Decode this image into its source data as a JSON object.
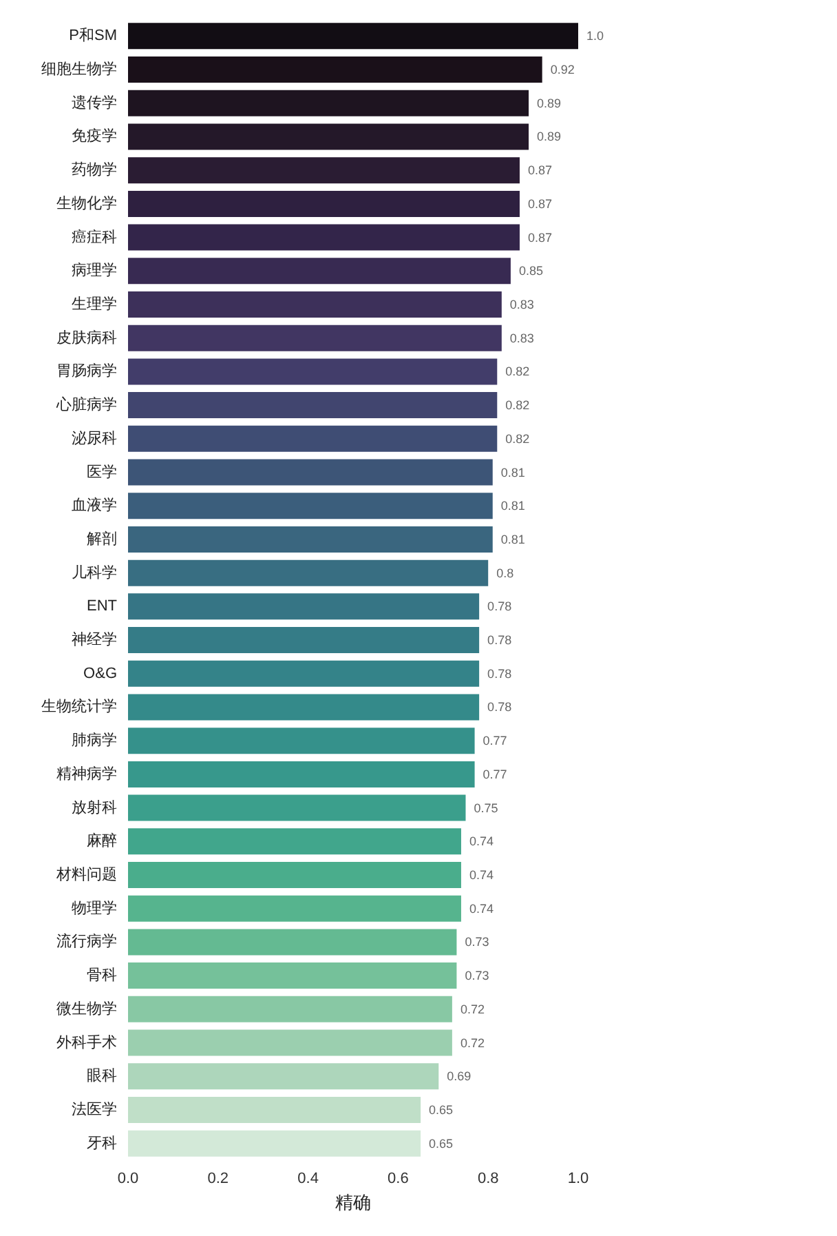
{
  "chart_data": {
    "type": "bar",
    "orientation": "horizontal",
    "xlabel": "精确",
    "categories": [
      "P和SM",
      "细胞生物学",
      "遗传学",
      "免疫学",
      "药物学",
      "生物化学",
      "癌症科",
      "病理学",
      "生理学",
      "皮肤病科",
      "胃肠病学",
      "心脏病学",
      "泌尿科",
      "医学",
      "血液学",
      "解剖",
      "儿科学",
      "ENT",
      "神经学",
      "O&G",
      "生物统计学",
      "肺病学",
      "精神病学",
      "放射科",
      "麻醉",
      "材料问题",
      "物理学",
      "流行病学",
      "骨科",
      "微生物学",
      "外科手术",
      "眼科",
      "法医学",
      "牙科"
    ],
    "values": [
      1.0,
      0.92,
      0.89,
      0.89,
      0.87,
      0.87,
      0.87,
      0.85,
      0.83,
      0.83,
      0.82,
      0.82,
      0.82,
      0.81,
      0.81,
      0.81,
      0.8,
      0.78,
      0.78,
      0.78,
      0.78,
      0.77,
      0.77,
      0.75,
      0.74,
      0.74,
      0.74,
      0.73,
      0.73,
      0.72,
      0.72,
      0.69,
      0.65,
      0.65
    ],
    "value_labels": [
      "1.0",
      "0.92",
      "0.89",
      "0.89",
      "0.87",
      "0.87",
      "0.87",
      "0.85",
      "0.83",
      "0.83",
      "0.82",
      "0.82",
      "0.82",
      "0.81",
      "0.81",
      "0.81",
      "0.8",
      "0.78",
      "0.78",
      "0.78",
      "0.78",
      "0.77",
      "0.77",
      "0.75",
      "0.74",
      "0.74",
      "0.74",
      "0.73",
      "0.73",
      "0.72",
      "0.72",
      "0.69",
      "0.65",
      "0.65"
    ],
    "colors": [
      "#120d14",
      "#1a1019",
      "#1e1420",
      "#241829",
      "#2a1c33",
      "#2e2040",
      "#33254a",
      "#382a52",
      "#3d305a",
      "#413662",
      "#423d6a",
      "#41456f",
      "#3f4d74",
      "#3d5577",
      "#3b5e7c",
      "#3a667f",
      "#386e82",
      "#367585",
      "#357c87",
      "#348389",
      "#348a8a",
      "#35918b",
      "#37988c",
      "#3b9f8c",
      "#41a68c",
      "#4aad8c",
      "#56b48e",
      "#64ba92",
      "#75c19a",
      "#88c8a4",
      "#9bcfaf",
      "#add6bb",
      "#c0dfc8",
      "#d3e9d8"
    ],
    "xlim": [
      0,
      1.0
    ],
    "xticks": [
      {
        "value": 0,
        "label": "0.0"
      },
      {
        "value": 0.2,
        "label": "0.2"
      },
      {
        "value": 0.4,
        "label": "0.4"
      },
      {
        "value": 0.6,
        "label": "0.6"
      },
      {
        "value": 0.8,
        "label": "0.8"
      },
      {
        "value": 1.0,
        "label": "1.0"
      }
    ],
    "grid": false
  }
}
